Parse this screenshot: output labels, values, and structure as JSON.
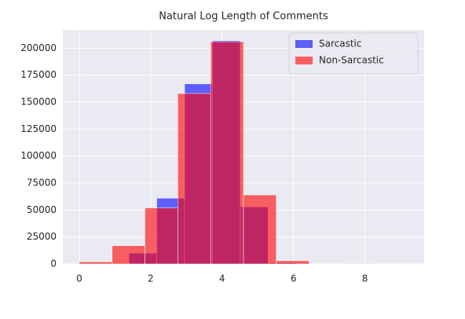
{
  "chart_data": {
    "type": "histogram",
    "title": "Natural Log Length of Comments",
    "series": [
      {
        "name": "Sarcastic",
        "color": "#0000ff",
        "bins": [
          1.39,
          2.17,
          2.95,
          3.73,
          4.51,
          5.29,
          6.07,
          6.85,
          7.63,
          8.41,
          9.19
        ],
        "values": [
          10000,
          61000,
          167000,
          207000,
          53000,
          1000,
          100,
          20,
          5,
          2
        ]
      },
      {
        "name": "Non-Sarcastic",
        "color": "#ff0000",
        "bins": [
          0,
          0.92,
          1.84,
          2.76,
          3.68,
          4.6,
          5.52,
          6.44,
          7.36,
          8.28,
          9.2
        ],
        "values": [
          2000,
          17000,
          52000,
          158000,
          206000,
          64000,
          3000,
          300,
          50,
          10
        ]
      }
    ],
    "opacity": 0.6,
    "xlim": [
      -0.46,
      9.66
    ],
    "xticks": [
      0,
      2,
      4,
      6,
      8
    ],
    "ylim": [
      0,
      217000
    ],
    "yticks": [
      0,
      25000,
      50000,
      75000,
      100000,
      125000,
      150000,
      175000,
      200000
    ],
    "grid": true,
    "legend": "upper right"
  }
}
